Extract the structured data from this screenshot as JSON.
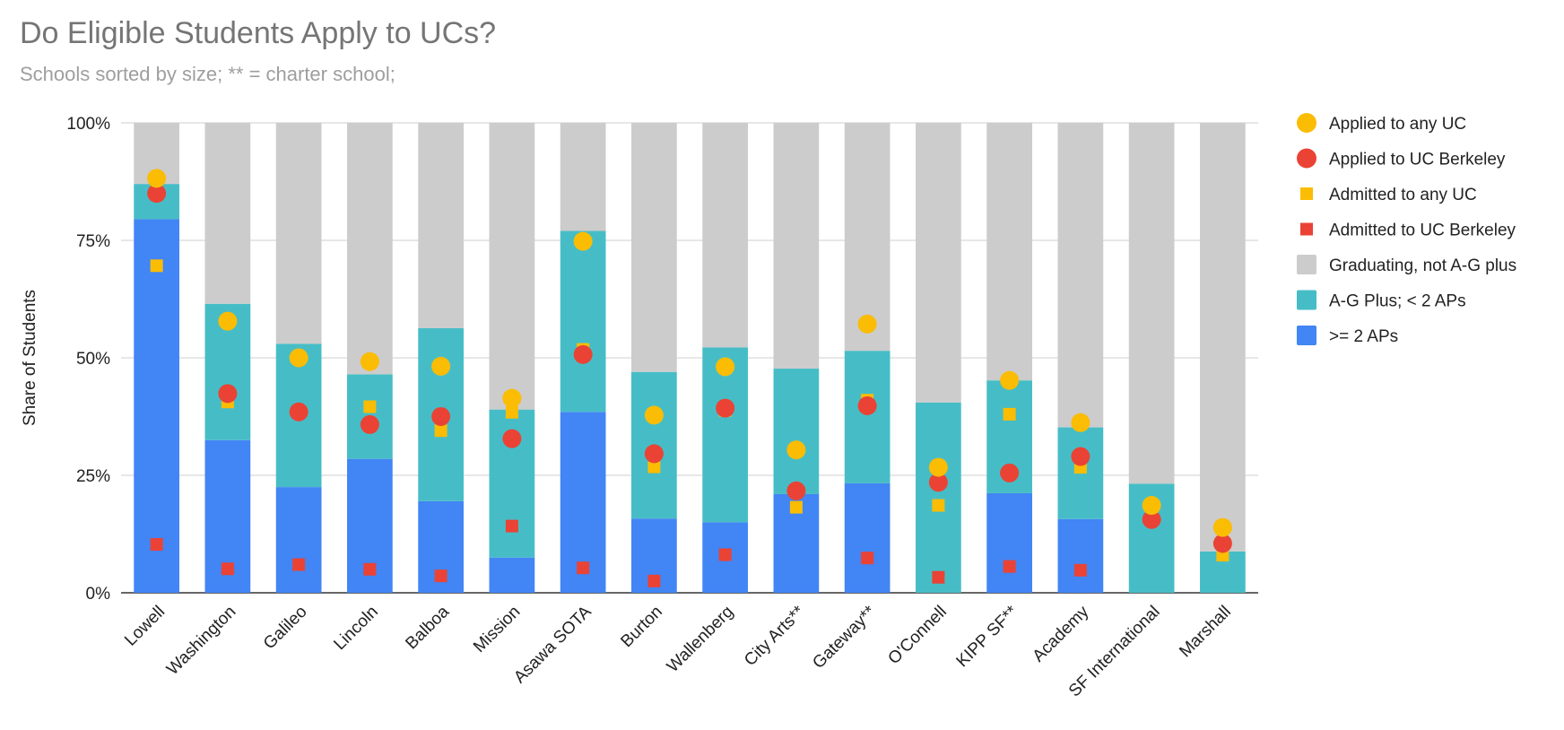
{
  "chart_data": {
    "type": "bar",
    "stacked": true,
    "title": "Do Eligible Students Apply to UCs?",
    "subtitle": "Schools sorted by size; ** = charter school;",
    "ylabel": "Share of Students",
    "xlabel": "",
    "ylim": [
      0,
      100
    ],
    "yticks": [
      "0%",
      "25%",
      "50%",
      "75%",
      "100%"
    ],
    "grid": true,
    "legend_position": "right",
    "categories": [
      "Lowell",
      "Washington",
      "Galileo",
      "Lincoln",
      "Balboa",
      "Mission",
      "Asawa SOTA",
      "Burton",
      "Wallenberg",
      "City Arts**",
      "Gateway**",
      "O'Connell",
      "KIPP SF**",
      "Academy",
      "SF International",
      "Marshall"
    ],
    "series": [
      {
        "name": ">= 2 APs",
        "kind": "bar",
        "color": "#4285f4",
        "values": [
          79.5,
          32.5,
          22.5,
          28.5,
          19.5,
          7.5,
          38.5,
          15.8,
          15,
          21,
          23.3,
          0,
          21.2,
          15.7,
          0,
          0
        ]
      },
      {
        "name": "A-G Plus; < 2 APs",
        "kind": "bar",
        "color": "#46bdc6",
        "values": [
          7.5,
          29,
          30.5,
          18,
          36.8,
          31.5,
          38.5,
          31.2,
          37.2,
          26.7,
          28.2,
          40.5,
          24,
          19.5,
          23.2,
          8.8
        ]
      },
      {
        "name": "Graduating, not A-G plus",
        "kind": "bar",
        "color": "#cccccc",
        "values": [
          13,
          38.5,
          47,
          53.5,
          43.7,
          61,
          23,
          53,
          47.8,
          52.3,
          48.5,
          59.5,
          54.8,
          64.8,
          76.8,
          91.2
        ]
      },
      {
        "name": "Applied to any UC",
        "kind": "circle",
        "color": "#fbbc04",
        "values": [
          88.2,
          57.8,
          50,
          49.2,
          48.2,
          41.4,
          74.8,
          37.8,
          48.1,
          30.4,
          57.2,
          26.7,
          45.2,
          36.2,
          18.6,
          13.9
        ]
      },
      {
        "name": "Applied to UC Berkeley",
        "kind": "circle",
        "color": "#ea4335",
        "values": [
          85,
          42.4,
          38.5,
          35.8,
          37.5,
          32.8,
          50.7,
          29.6,
          39.3,
          21.7,
          39.8,
          23.5,
          25.5,
          29,
          15.6,
          10.5
        ]
      },
      {
        "name": "Admitted to any UC",
        "kind": "square",
        "color": "#fbbc04",
        "values": [
          69.6,
          40.6,
          null,
          39.6,
          34.5,
          38.4,
          51.8,
          26.8,
          38.8,
          18.2,
          41,
          18.6,
          38,
          26.7,
          null,
          8
        ]
      },
      {
        "name": "Admitted to UC Berkeley",
        "kind": "square",
        "color": "#ea4335",
        "values": [
          10.3,
          5.1,
          6,
          5,
          3.6,
          14.2,
          5.3,
          2.5,
          8.1,
          null,
          7.4,
          3.3,
          5.6,
          4.8,
          null,
          null
        ]
      }
    ],
    "legend_order": [
      "Applied to any UC",
      "Applied to UC Berkeley",
      "Admitted to any UC",
      "Admitted to UC Berkeley",
      "Graduating, not A-G plus",
      "A-G Plus; < 2 APs",
      ">= 2 APs"
    ]
  }
}
